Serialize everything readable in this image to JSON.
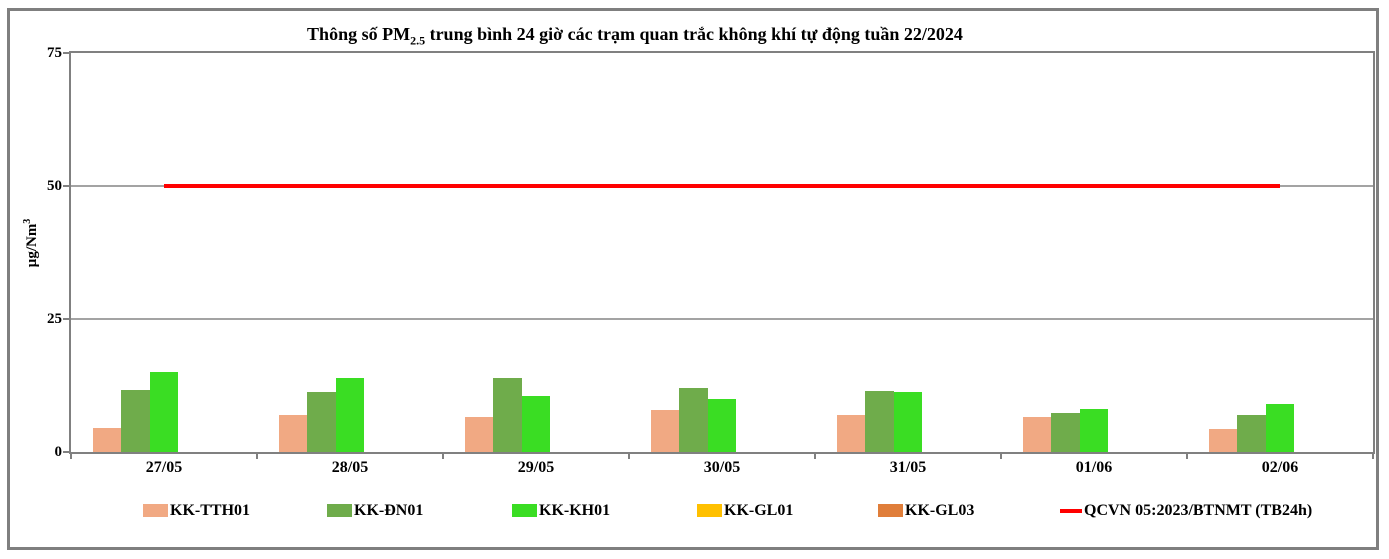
{
  "title": {
    "prefix": "Thông số PM",
    "subscript": "2.5",
    "suffix": " trung bình 24 giờ các trạm quan trắc không khí tự động tuần 22/2024"
  },
  "y_axis": {
    "label_prefix": "µg/Nm",
    "label_sup": "3",
    "ticks": [
      0,
      25,
      50,
      75
    ],
    "max": 75
  },
  "colors": {
    "frame": "#808080",
    "gridline": "#a3a3a3",
    "reference_line": "#ff0000",
    "text": "#000000"
  },
  "chart_data": {
    "type": "bar",
    "title": "Thông số PM2.5 trung bình 24 giờ các trạm quan trắc không khí tự động tuần 22/2024",
    "xlabel": "",
    "ylabel": "µg/Nm3",
    "ylim": [
      0,
      75
    ],
    "yticks": [
      0,
      25,
      50,
      75
    ],
    "grid": "horizontal",
    "legend_position": "bottom",
    "categories": [
      "27/05",
      "28/05",
      "29/05",
      "30/05",
      "31/05",
      "01/06",
      "02/06"
    ],
    "series": [
      {
        "name": "KK-TTH01",
        "type": "bar",
        "color": "#f1a983",
        "values": [
          4.6,
          7.0,
          6.6,
          7.9,
          6.9,
          6.6,
          4.4
        ]
      },
      {
        "name": "KK-ĐN01",
        "type": "bar",
        "color": "#6fac4b",
        "values": [
          11.7,
          11.3,
          13.9,
          12.1,
          11.5,
          7.3,
          6.9
        ]
      },
      {
        "name": "KK-KH01",
        "type": "bar",
        "color": "#3add23",
        "values": [
          15.0,
          13.9,
          10.6,
          10.0,
          11.3,
          8.1,
          9.1
        ]
      },
      {
        "name": "KK-GL01",
        "type": "bar",
        "color": "#ffc000",
        "values": [
          null,
          null,
          null,
          null,
          null,
          null,
          null
        ]
      },
      {
        "name": "KK-GL03",
        "type": "bar",
        "color": "#e07e3a",
        "values": [
          null,
          null,
          null,
          null,
          null,
          null,
          null
        ]
      },
      {
        "name": "QCVN 05:2023/BTNMT (TB24h)",
        "type": "line",
        "color": "#ff0000",
        "value": 50
      }
    ]
  }
}
